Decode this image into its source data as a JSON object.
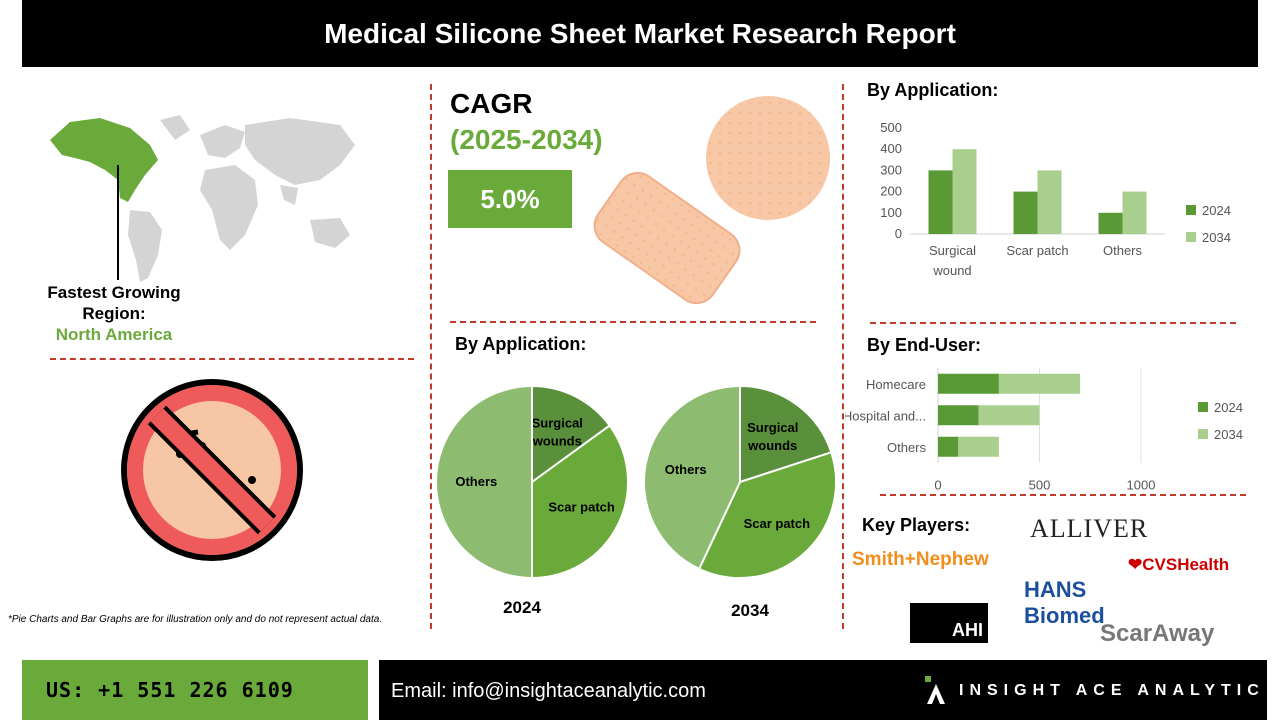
{
  "header": {
    "title": "Medical Silicone Sheet Market Research Report"
  },
  "region": {
    "label": "Fastest Growing Region:",
    "value": "North America"
  },
  "cagr": {
    "title": "CAGR",
    "period": "(2025-2034)",
    "value": "5.0%"
  },
  "disclaimer": "*Pie Charts and Bar Graphs are for illustration only and do not represent actual data.",
  "sections": {
    "app_bar_title": "By Application:",
    "app_pie_title": "By Application:",
    "enduser_title": "By End-User:",
    "key_players_title": "Key Players:"
  },
  "key_players": [
    "Smith+Nephew",
    "ALLIVER",
    "CVSHealth",
    "HANS Biomed",
    "AHI",
    "ScarAway"
  ],
  "footer": {
    "phone": "US: +1 551 226 6109",
    "email": "Email: info@insightaceanalytic.com",
    "brand": "INSIGHT ACE ANALYTIC"
  },
  "colors": {
    "dark_green": "#5a9a35",
    "light_green": "#a9cf8e",
    "pie_dark": "#5a8f3c",
    "pie_mid": "#6aaa3a",
    "pie_light": "#8dbb70"
  },
  "chart_data": [
    {
      "type": "bar",
      "title": "By Application:",
      "categories": [
        "Surgical wound",
        "Scar patch",
        "Others"
      ],
      "category_lines": [
        [
          "Surgical",
          "wound"
        ],
        [
          "Scar patch"
        ],
        [
          "Others"
        ]
      ],
      "series": [
        {
          "name": "2024",
          "values": [
            300,
            200,
            100
          ]
        },
        {
          "name": "2034",
          "values": [
            400,
            300,
            200
          ]
        }
      ],
      "ylim": [
        0,
        500
      ],
      "yticks": [
        0,
        100,
        200,
        300,
        400,
        500
      ],
      "legend": "right"
    },
    {
      "type": "bar",
      "orientation": "horizontal",
      "title": "By End-User:",
      "categories": [
        "Homecare",
        "Hospital and...",
        "Others"
      ],
      "series": [
        {
          "name": "2024",
          "values": [
            300,
            200,
            100
          ]
        },
        {
          "name": "2034",
          "values": [
            400,
            300,
            200
          ]
        }
      ],
      "xlim": [
        0,
        1000
      ],
      "xticks": [
        0,
        500,
        1000
      ],
      "legend": "right"
    },
    {
      "type": "pie",
      "title": "2024",
      "labels": [
        "Surgical wounds",
        "Scar patch",
        "Others"
      ],
      "label_lines": [
        [
          "Surgical",
          "wounds"
        ],
        [
          "Scar patch"
        ],
        [
          "Others"
        ]
      ],
      "values": [
        15,
        35,
        50
      ]
    },
    {
      "type": "pie",
      "title": "2034",
      "labels": [
        "Surgical wounds",
        "Scar patch",
        "Others"
      ],
      "label_lines": [
        [
          "Surgical",
          "wounds"
        ],
        [
          "Scar patch"
        ],
        [
          "Others"
        ]
      ],
      "values": [
        20,
        37,
        43
      ]
    }
  ]
}
